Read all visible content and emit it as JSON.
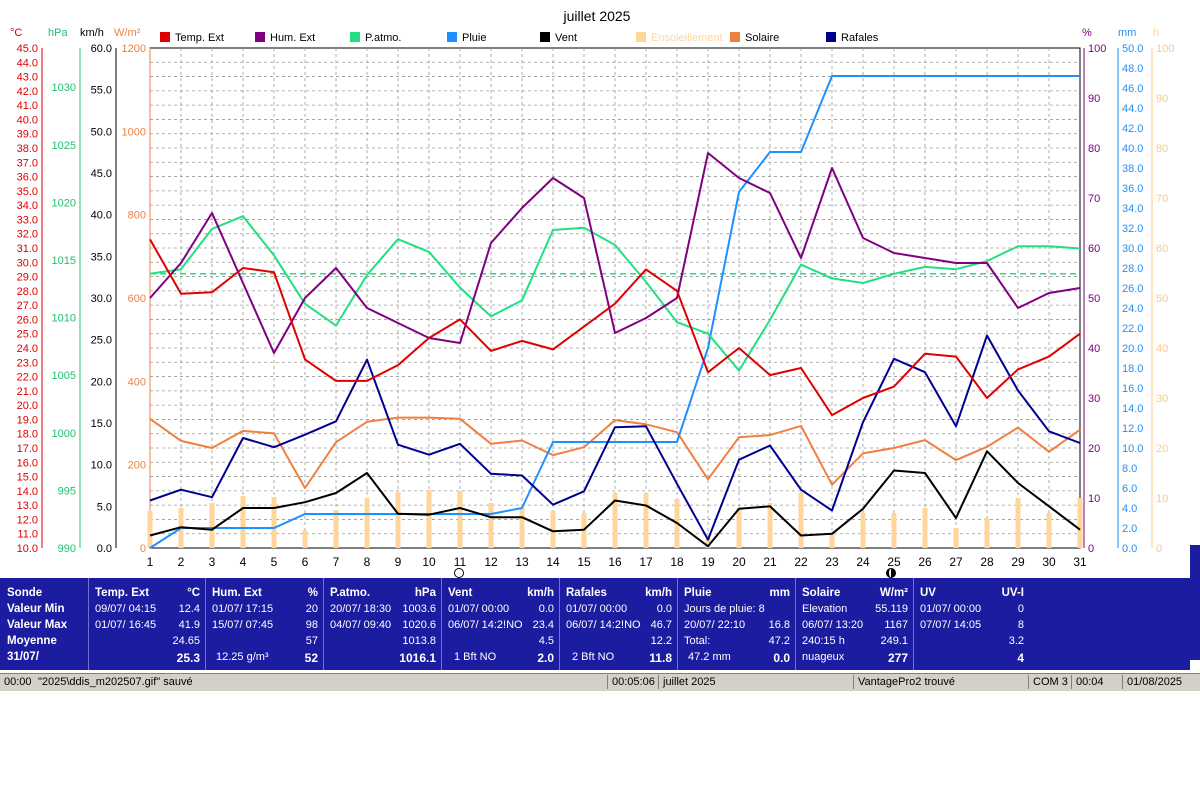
{
  "title": "juillet 2025",
  "axes_headers": {
    "temp_unit": "°C",
    "hpa_unit": "hPa",
    "kmh_unit": "km/h",
    "wm2_unit": "W/m²",
    "pct_unit": "%",
    "mm_unit": "mm",
    "h_unit": "h"
  },
  "legend": [
    {
      "label": "Temp. Ext",
      "color": "#e00000"
    },
    {
      "label": "Hum. Ext",
      "color": "#800080"
    },
    {
      "label": "P.atmo.",
      "color": "#20e080"
    },
    {
      "label": "Pluie",
      "color": "#1e90ff"
    },
    {
      "label": "Vent",
      "color": "#000000"
    },
    {
      "label": "Ensoleillement",
      "color": "#ffd59a"
    },
    {
      "label": "Solaire",
      "color": "#f08040"
    },
    {
      "label": "Rafales",
      "color": "#000090"
    }
  ],
  "chart_data": {
    "type": "line",
    "title": "juillet 2025",
    "days": [
      1,
      2,
      3,
      4,
      5,
      6,
      7,
      8,
      9,
      10,
      11,
      12,
      13,
      14,
      15,
      16,
      17,
      18,
      19,
      20,
      21,
      22,
      23,
      24,
      25,
      26,
      27,
      28,
      29,
      30,
      31
    ],
    "temp_axis": {
      "unit": "°C",
      "min": 10,
      "max": 45,
      "step": 1
    },
    "pressure_axis": {
      "unit": "hPa",
      "min": 990,
      "max": 1033.4,
      "ticks": [
        990,
        995,
        1000,
        1005,
        1010,
        1015,
        1020,
        1025,
        1030
      ]
    },
    "wind_axis": {
      "unit": "km/h",
      "min": 0,
      "max": 60,
      "step": 5
    },
    "solar_axis": {
      "unit": "W/m²",
      "min": 0,
      "max": 1200,
      "step": 200
    },
    "humidity_axis": {
      "unit": "%",
      "min": 0,
      "max": 100,
      "step": 10
    },
    "rain_axis": {
      "unit": "mm",
      "min": 0,
      "max": 50,
      "step": 2
    },
    "sun_axis": {
      "unit": "h",
      "min": 0,
      "max": 100,
      "step": 10
    },
    "pressure_mean": 1013.8,
    "series": [
      {
        "name": "Temp. Ext",
        "color": "#e00000",
        "axis": "temp",
        "values": [
          31.6,
          27.8,
          27.9,
          29.6,
          29.3,
          23.2,
          21.7,
          21.7,
          22.8,
          24.7,
          26.0,
          23.8,
          24.5,
          23.9,
          25.5,
          27.1,
          29.5,
          28.0,
          22.3,
          24.0,
          22.1,
          22.6,
          19.3,
          20.5,
          21.3,
          23.6,
          23.4,
          20.5,
          22.5,
          23.4,
          25.0
        ]
      },
      {
        "name": "Hum. Ext",
        "color": "#800080",
        "axis": "humidity",
        "values": [
          50,
          57,
          67,
          53,
          39,
          50,
          56,
          48,
          45,
          42,
          41,
          61,
          68,
          74,
          70,
          43,
          46,
          50,
          79,
          74,
          71,
          58,
          76,
          62,
          59,
          58,
          57,
          57,
          48,
          51,
          52
        ]
      },
      {
        "name": "P.atmo.",
        "color": "#20e080",
        "axis": "pressure",
        "values": [
          1013.8,
          1014.2,
          1017.7,
          1018.8,
          1015.4,
          1011.2,
          1009.3,
          1013.7,
          1016.8,
          1015.7,
          1012.6,
          1010.1,
          1011.5,
          1017.6,
          1017.8,
          1016.3,
          1013.1,
          1009.6,
          1008.6,
          1005.4,
          1009.8,
          1014.6,
          1013.4,
          1013.0,
          1013.8,
          1014.4,
          1014.2,
          1014.9,
          1016.2,
          1016.2,
          1016.0
        ]
      },
      {
        "name": "Pluie",
        "color": "#1e90ff",
        "axis": "rain",
        "style": "step",
        "values": [
          0,
          2.0,
          2.0,
          2.0,
          2.0,
          3.4,
          3.4,
          3.4,
          3.4,
          3.4,
          3.4,
          3.4,
          4.0,
          10.6,
          10.6,
          10.6,
          10.6,
          10.6,
          20.0,
          35.6,
          39.6,
          39.6,
          47.2,
          47.2,
          47.2,
          47.2,
          47.2,
          47.2,
          47.2,
          47.2,
          47.2
        ]
      },
      {
        "name": "Vent",
        "color": "#000000",
        "axis": "wind",
        "values": [
          1.5,
          2.5,
          2.2,
          4.8,
          4.8,
          5.5,
          6.6,
          9.0,
          4.1,
          4.0,
          4.8,
          3.7,
          3.7,
          2.0,
          2.2,
          5.7,
          5.1,
          3.0,
          0.2,
          4.7,
          5.0,
          1.5,
          1.7,
          4.7,
          9.3,
          9.0,
          3.6,
          11.6,
          7.8,
          5.0,
          2.2
        ]
      },
      {
        "name": "Rafales",
        "color": "#000090",
        "axis": "wind",
        "values": [
          5.7,
          7.0,
          6.1,
          13.2,
          12.1,
          13.6,
          15.2,
          22.6,
          12.4,
          11.2,
          12.5,
          8.9,
          8.7,
          5.2,
          6.8,
          14.5,
          14.6,
          7.7,
          1.0,
          10.6,
          12.3,
          7.0,
          4.5,
          15.1,
          22.7,
          21.1,
          14.6,
          25.5,
          18.9,
          14.0,
          12.6
        ]
      },
      {
        "name": "Solaire",
        "color": "#f08040",
        "axis": "solar",
        "values": [
          310,
          257,
          240,
          281,
          275,
          144,
          254,
          303,
          313,
          313,
          310,
          250,
          258,
          223,
          242,
          307,
          297,
          278,
          165,
          266,
          271,
          293,
          152,
          227,
          240,
          259,
          211,
          243,
          289,
          231,
          284
        ]
      },
      {
        "name": "Ensoleillement",
        "color": "#ffd59a",
        "axis": "sun",
        "style": "bar",
        "values": [
          7.4,
          8.0,
          9.0,
          10.4,
          10.2,
          3.5,
          7.6,
          10.0,
          11.2,
          11.6,
          11.4,
          9.0,
          8.0,
          7.4,
          7.0,
          11.0,
          11.0,
          9.8,
          3.0,
          8.0,
          9.0,
          11.0,
          3.0,
          7.0,
          7.0,
          8.0,
          4.0,
          6.0,
          10.0,
          7.0,
          10.0
        ]
      }
    ]
  },
  "stats": {
    "col1": {
      "header": "Sonde",
      "row1": "Valeur Min",
      "row2": "Valeur Max",
      "row3": "Moyenne",
      "row4": "31/07/"
    },
    "temp": {
      "header": "Temp. Ext",
      "unit": "°C",
      "min_time": "09/07/  04:15",
      "min_val": "12.4",
      "max_time": "01/07/  16:45",
      "max_val": "41.9",
      "avg_val": "24.65",
      "cur_val": "25.3"
    },
    "hum": {
      "header": "Hum. Ext",
      "unit": "%",
      "min_time": "01/07/  17:15",
      "min_val": "20",
      "max_time": "15/07/  07:45",
      "max_val": "98",
      "avg_val": "57",
      "cur_extra": "12.25 g/m³",
      "cur_val": "52"
    },
    "patmo": {
      "header": "P.atmo.",
      "unit": "hPa",
      "min_time": "20/07/  18:30",
      "min_val": "1003.6",
      "max_time": "04/07/  09:40",
      "max_val": "1020.6",
      "avg_val": "1013.8",
      "cur_val": "1016.1"
    },
    "vent": {
      "header": "Vent",
      "unit": "km/h",
      "min_time": "01/07/  00:00",
      "min_val": "0.0",
      "max_time": "06/07/  14:2!NO",
      "max_val": "23.4",
      "avg_val": "4.5",
      "cur_extra": "1 Bft NO",
      "cur_val": "2.0"
    },
    "rafales": {
      "header": "Rafales",
      "unit": "km/h",
      "min_time": "01/07/  00:00",
      "min_val": "0.0",
      "max_time": "06/07/  14:2!NO",
      "max_val": "46.7",
      "avg_val": "12.2",
      "cur_extra": "2 Bft NO",
      "cur_val": "11.8"
    },
    "pluie": {
      "header": "Pluie",
      "unit": "mm",
      "row1": "Jours de pluie: 8",
      "max_time": "20/07/  22:10",
      "max_val": "16.8",
      "total_label": "Total:",
      "total_val": "47.2",
      "cur_extra": "47.2 mm",
      "cur_val": "0.0"
    },
    "solaire": {
      "header": "Solaire",
      "unit": "W/m²",
      "row1_label": "Elevation",
      "row1_val": "55.119",
      "max_time": "06/07/  13:20",
      "max_val": "1167",
      "row3_label": "240:15 h",
      "row3_val": "249.1",
      "cur_extra": "nuageux",
      "cur_val": "277"
    },
    "uv": {
      "header": "UV",
      "unit": "UV-I",
      "min_time": "01/07/  00:00",
      "min_val": "0",
      "max_time": "07/07/  14:05",
      "max_val": "8",
      "avg_val": "3.2",
      "cur_val": "4"
    }
  },
  "statusbar": {
    "msg_time": "00:00",
    "msg": "\"2025\\ddis_m202507.gif\"  sauvé",
    "elapsed": "00:05:06",
    "month": "juillet 2025",
    "station": "VantagePro2 trouvé",
    "port": "COM 3",
    "clock": "00:04",
    "date": "01/08/2025"
  }
}
